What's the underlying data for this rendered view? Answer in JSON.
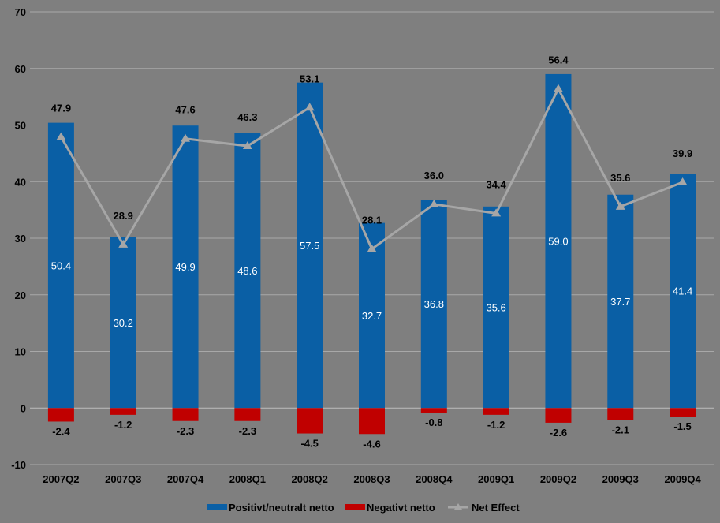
{
  "chart_data": {
    "type": "bar",
    "categories": [
      "2007Q2",
      "2007Q3",
      "2007Q4",
      "2008Q1",
      "2008Q2",
      "2008Q3",
      "2008Q4",
      "2009Q1",
      "2009Q2",
      "2009Q3",
      "2009Q4"
    ],
    "series": [
      {
        "name": "Positivt/neutralt netto",
        "type": "bar",
        "color": "#0a5fa5",
        "values": [
          50.4,
          30.2,
          49.9,
          48.6,
          57.5,
          32.7,
          36.8,
          35.6,
          59.0,
          37.7,
          41.4
        ],
        "labels": [
          "50.4",
          "30.2",
          "49.9",
          "48.6",
          "57.5",
          "32.7",
          "36.8",
          "35.6",
          "59.0",
          "37.7",
          "41.4"
        ]
      },
      {
        "name": "Negativt netto",
        "type": "bar",
        "color": "#c00000",
        "values": [
          -2.4,
          -1.2,
          -2.3,
          -2.3,
          -4.5,
          -4.6,
          -0.8,
          -1.2,
          -2.6,
          -2.1,
          -1.5
        ],
        "labels": [
          "-2.4",
          "-1.2",
          "-2.3",
          "-2.3",
          "-4.5",
          "-4.6",
          "-0.8",
          "-1.2",
          "-2.6",
          "-2.1",
          "-1.5"
        ]
      },
      {
        "name": "Net Effect",
        "type": "line",
        "color": "#a6a6a6",
        "values": [
          47.9,
          28.9,
          47.6,
          46.3,
          53.1,
          28.1,
          36.0,
          34.4,
          56.4,
          35.6,
          39.9
        ],
        "labels": [
          "47.9",
          "28.9",
          "47.6",
          "46.3",
          "53.1",
          "28.1",
          "36.0",
          "34.4",
          "56.4",
          "35.6",
          "39.9"
        ]
      }
    ],
    "y_ticks": [
      "70",
      "60",
      "50",
      "40",
      "30",
      "20",
      "10",
      "0",
      "-10"
    ],
    "ylim": [
      -10,
      70
    ],
    "grid": true,
    "legend_position": "bottom"
  }
}
